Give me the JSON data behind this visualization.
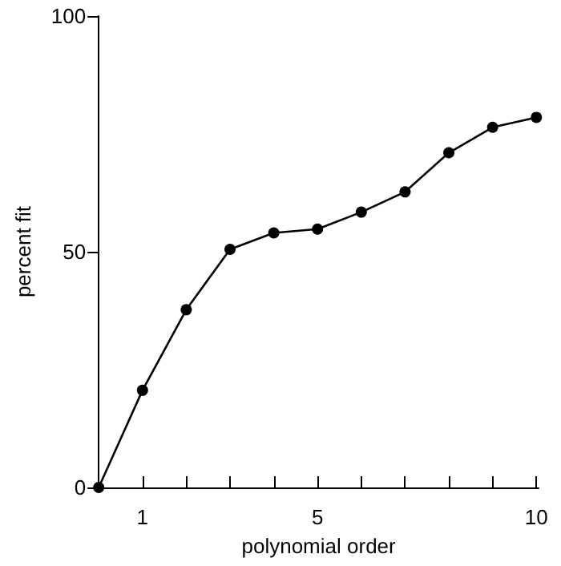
{
  "chart_data": {
    "type": "line",
    "xlabel": "polynomial order",
    "ylabel": "percent fit",
    "series": [
      {
        "x": [
          0,
          1,
          2,
          3,
          4,
          5,
          6,
          7,
          8,
          9,
          10
        ],
        "values": [
          0,
          20.6,
          37.7,
          50.5,
          54,
          54.8,
          58.4,
          62.7,
          71,
          76.4,
          78.5
        ],
        "color": "#000000"
      }
    ],
    "marker": "circle",
    "xlim": [
      0,
      10.05
    ],
    "xticks": [
      1,
      {
        "value": 2,
        "label": null
      },
      {
        "value": 3,
        "label": null
      },
      {
        "value": 4,
        "label": null
      },
      5,
      {
        "value": 6,
        "label": null
      },
      {
        "value": 7,
        "label": null
      },
      {
        "value": 8,
        "label": null
      },
      {
        "value": 9,
        "label": null
      },
      10
    ],
    "ylim": [
      0,
      100
    ],
    "yticks": [
      0,
      50,
      100
    ],
    "line_style": "solid"
  }
}
